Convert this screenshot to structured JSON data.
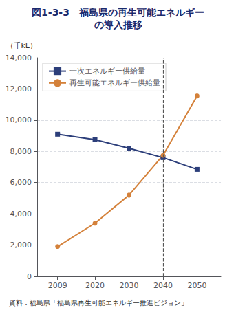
{
  "chart_data": {
    "type": "line",
    "title": "図1-3-3　福島県の再生可能エネルギー",
    "subtitle": "の導入推移",
    "ylabel": "（千kL）",
    "source": "資料：福島県「福島県再生可能エネルギー推進ビジョン」",
    "x": [
      2009,
      2020,
      2030,
      2040,
      2050
    ],
    "series": [
      {
        "name": "一次エネルギー供給量",
        "color": "#2c3e7a",
        "marker": "square",
        "values": [
          9100,
          8750,
          8200,
          7600,
          6850
        ]
      },
      {
        "name": "再生可能エネルギー供給量",
        "color": "#d4813a",
        "marker": "circle",
        "values": [
          1900,
          3400,
          5200,
          7750,
          11550
        ]
      }
    ],
    "vline_x": 2040,
    "xlim": [
      2003,
      2057
    ],
    "xticks": [
      2009,
      2020,
      2030,
      2040,
      2050
    ],
    "ylim": [
      0,
      14000
    ],
    "yticks": [
      0,
      {
        "value": 2000,
        "label": "2,000"
      },
      {
        "value": 4000,
        "label": "4,000"
      },
      {
        "value": 6000,
        "label": "6,000"
      },
      {
        "value": 8000,
        "label": "8,000"
      },
      {
        "value": 10000,
        "label": "10,000"
      },
      {
        "value": 12000,
        "label": "12,000"
      },
      {
        "value": 14000,
        "label": "14,000"
      }
    ],
    "grid": true,
    "legend": "upper left"
  }
}
